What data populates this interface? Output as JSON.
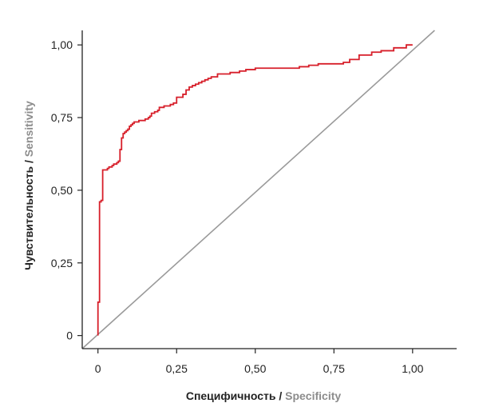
{
  "chart_data": {
    "type": "line",
    "xlabel_parts": [
      "Специфичность",
      " / ",
      "Specificity"
    ],
    "ylabel_parts": [
      "Чувствительность",
      " / ",
      "Sensitivity"
    ],
    "xlim": [
      -0.05,
      1.14
    ],
    "ylim": [
      -0.045,
      1.05
    ],
    "x_ticks": [
      {
        "value": 0,
        "label": "0"
      },
      {
        "value": 0.25,
        "label": "0,25"
      },
      {
        "value": 0.5,
        "label": "0,50"
      },
      {
        "value": 0.75,
        "label": "0,75"
      },
      {
        "value": 1.0,
        "label": "1,00"
      }
    ],
    "y_ticks": [
      {
        "value": 0,
        "label": "0"
      },
      {
        "value": 0.25,
        "label": "0,25"
      },
      {
        "value": 0.5,
        "label": "0,50"
      },
      {
        "value": 0.75,
        "label": "0,75"
      },
      {
        "value": 1.0,
        "label": "1,00"
      }
    ],
    "grid": false,
    "colors": {
      "roc": "#d71f2a",
      "diagonal": "#9a9a9a",
      "axis": "#222222",
      "label_en": "#8c8c8c"
    },
    "series": [
      {
        "kind": "roc-step",
        "x": [
          0,
          0.005,
          0.01,
          0.015,
          0.02,
          0.025,
          0.03,
          0.035,
          0.045,
          0.05,
          0.06,
          0.065,
          0.07,
          0.075,
          0.08,
          0.085,
          0.09,
          0.095,
          0.1,
          0.105,
          0.11,
          0.115,
          0.12,
          0.125,
          0.13,
          0.135,
          0.14,
          0.15,
          0.16,
          0.165,
          0.17,
          0.18,
          0.19,
          0.195,
          0.2,
          0.21,
          0.22,
          0.23,
          0.24,
          0.25,
          0.27,
          0.28,
          0.29,
          0.3,
          0.31,
          0.32,
          0.33,
          0.34,
          0.35,
          0.36,
          0.38,
          0.42,
          0.45,
          0.47,
          0.5,
          0.53,
          0.56,
          0.6,
          0.64,
          0.67,
          0.7,
          0.72,
          0.78,
          0.8,
          0.83,
          0.87,
          0.9,
          0.94,
          0.98,
          1.0,
          1.0
        ],
        "y": [
          0.11,
          0.115,
          0.46,
          0.465,
          0.57,
          0.57,
          0.57,
          0.575,
          0.58,
          0.585,
          0.59,
          0.595,
          0.6,
          0.64,
          0.68,
          0.695,
          0.7,
          0.705,
          0.71,
          0.72,
          0.725,
          0.73,
          0.735,
          0.735,
          0.735,
          0.74,
          0.74,
          0.74,
          0.745,
          0.75,
          0.755,
          0.765,
          0.77,
          0.775,
          0.785,
          0.785,
          0.79,
          0.79,
          0.795,
          0.8,
          0.82,
          0.83,
          0.845,
          0.855,
          0.86,
          0.865,
          0.87,
          0.875,
          0.88,
          0.885,
          0.89,
          0.9,
          0.905,
          0.91,
          0.915,
          0.92,
          0.92,
          0.92,
          0.92,
          0.925,
          0.93,
          0.935,
          0.935,
          0.94,
          0.95,
          0.965,
          0.975,
          0.98,
          0.99,
          1.0,
          1.0
        ]
      },
      {
        "kind": "reference-diagonal",
        "x": [
          -0.05,
          1.07
        ],
        "y": [
          -0.045,
          1.05
        ]
      }
    ]
  }
}
